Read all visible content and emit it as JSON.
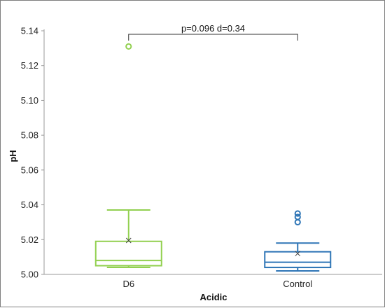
{
  "chart_data": {
    "type": "box",
    "title": "",
    "xlabel": "Acidic",
    "ylabel": "pH",
    "ylim": [
      5.0,
      5.14
    ],
    "yticks": [
      "5.00",
      "5.02",
      "5.04",
      "5.06",
      "5.08",
      "5.10",
      "5.12",
      "5.14"
    ],
    "grid": false,
    "legend": "none",
    "categories": [
      "D6",
      "Control"
    ],
    "series": [
      {
        "category": "D6",
        "color": "#92d050",
        "min": 5.004,
        "q1": 5.005,
        "median": 5.008,
        "q3": 5.019,
        "max": 5.037,
        "mean": 5.0195,
        "outliers": [
          5.131
        ]
      },
      {
        "category": "Control",
        "color": "#2e75b6",
        "min": 5.002,
        "q1": 5.004,
        "median": 5.007,
        "q3": 5.013,
        "max": 5.018,
        "mean": 5.012,
        "outliers": [
          5.03,
          5.033,
          5.035
        ]
      }
    ],
    "annotation": {
      "text": "p=0.096   d=0.34",
      "from": "D6",
      "to": "Control",
      "y": 5.138
    }
  }
}
